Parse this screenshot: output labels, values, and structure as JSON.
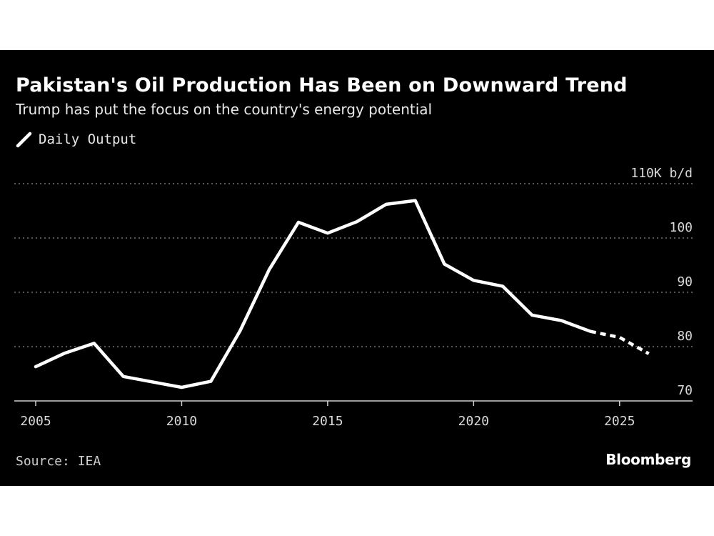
{
  "header": {
    "title": "Pakistan's Oil Production Has Been on Downward Trend",
    "subtitle": "Trump has put the focus on the country's energy potential"
  },
  "legend": {
    "label": "Daily Output",
    "icon": "line-swatch-icon"
  },
  "footer": {
    "source": "Source: IEA",
    "brand": "Bloomberg"
  },
  "colors": {
    "background": "#000000",
    "line": "#ffffff",
    "grid": "#8a8a8a",
    "text": "#ffffff"
  },
  "chart_data": {
    "type": "line",
    "title": "Pakistan's Oil Production Has Been on Downward Trend",
    "subtitle": "Trump has put the focus on the country's energy potential",
    "xlabel": "",
    "ylabel": "",
    "xlim": [
      2005,
      2027.5
    ],
    "ylim": [
      70,
      110
    ],
    "x_ticks": [
      2005,
      2010,
      2015,
      2020,
      2025
    ],
    "y_ticks": [
      {
        "value": 70,
        "label": "70"
      },
      {
        "value": 80,
        "label": "80"
      },
      {
        "value": 90,
        "label": "90"
      },
      {
        "value": 100,
        "label": "100"
      },
      {
        "value": 110,
        "label": "110K b/d"
      }
    ],
    "grid": "horizontal dotted",
    "legend_position": "top-left",
    "series": [
      {
        "name": "Daily Output",
        "style": "solid",
        "x": [
          2005,
          2006,
          2007,
          2008,
          2009,
          2010,
          2011,
          2012,
          2013,
          2014,
          2015,
          2016,
          2017,
          2018,
          2019,
          2020,
          2021,
          2022,
          2023,
          2024
        ],
        "y": [
          76.3,
          78.8,
          80.6,
          74.5,
          73.5,
          72.5,
          73.6,
          82.9,
          94.2,
          102.9,
          100.9,
          103.0,
          106.2,
          106.9,
          95.2,
          92.2,
          91.1,
          85.8,
          84.8,
          82.8
        ]
      },
      {
        "name": "",
        "style": "dashed",
        "x": [
          2024,
          2025,
          2026
        ],
        "y": [
          82.8,
          81.7,
          78.7
        ]
      }
    ]
  }
}
